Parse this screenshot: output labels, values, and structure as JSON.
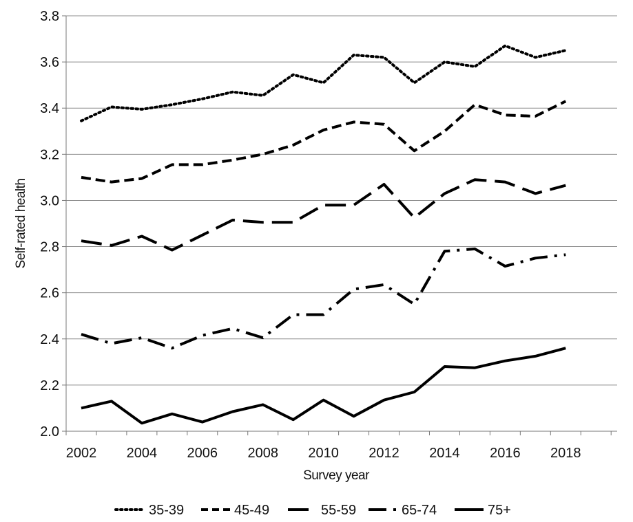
{
  "chart_data": {
    "type": "line",
    "title": "",
    "xlabel": "Survey year",
    "ylabel": "Self-rated health",
    "ylim": [
      2.0,
      3.8
    ],
    "xlim": [
      2001.5,
      2018
    ],
    "yticks": [
      "2.0",
      "2.2",
      "2.4",
      "2.6",
      "2.8",
      "3.0",
      "3.2",
      "3.4",
      "3.6",
      "3.8"
    ],
    "xticks": [
      "2002",
      "2004",
      "2006",
      "2008",
      "2010",
      "2012",
      "2014",
      "2016",
      "2018"
    ],
    "grid": "horizontal",
    "legend_position": "bottom",
    "x": [
      2002,
      2003,
      2004,
      2005,
      2006,
      2007,
      2008,
      2009,
      2010,
      2011,
      2012,
      2013,
      2014,
      2015,
      2016,
      2017,
      2018
    ],
    "series": [
      {
        "name": "35-39",
        "line_style": "dotted",
        "values": [
          3.345,
          3.405,
          3.395,
          3.415,
          3.44,
          3.47,
          3.455,
          3.545,
          3.51,
          3.63,
          3.62,
          3.51,
          3.6,
          3.58,
          3.67,
          3.62,
          3.65
        ]
      },
      {
        "name": "45-49",
        "line_style": "short-dash",
        "values": [
          3.1,
          3.08,
          3.095,
          3.155,
          3.155,
          3.175,
          3.2,
          3.24,
          3.305,
          3.34,
          3.33,
          3.215,
          3.3,
          3.415,
          3.37,
          3.365,
          3.43
        ]
      },
      {
        "name": "55-59",
        "line_style": "long-dash",
        "values": [
          2.825,
          2.805,
          2.845,
          2.785,
          2.85,
          2.915,
          2.905,
          2.905,
          2.98,
          2.98,
          3.07,
          2.925,
          3.03,
          3.09,
          3.08,
          3.03,
          3.065
        ]
      },
      {
        "name": "65-74",
        "line_style": "dash-dot",
        "values": [
          2.42,
          2.38,
          2.405,
          2.36,
          2.415,
          2.445,
          2.405,
          2.505,
          2.505,
          2.615,
          2.635,
          2.55,
          2.78,
          2.79,
          2.715,
          2.75,
          2.765
        ]
      },
      {
        "name": "75+",
        "line_style": "solid",
        "values": [
          2.1,
          2.13,
          2.035,
          2.075,
          2.04,
          2.085,
          2.115,
          2.05,
          2.135,
          2.065,
          2.135,
          2.17,
          2.28,
          2.275,
          2.305,
          2.325,
          2.36
        ]
      }
    ]
  }
}
